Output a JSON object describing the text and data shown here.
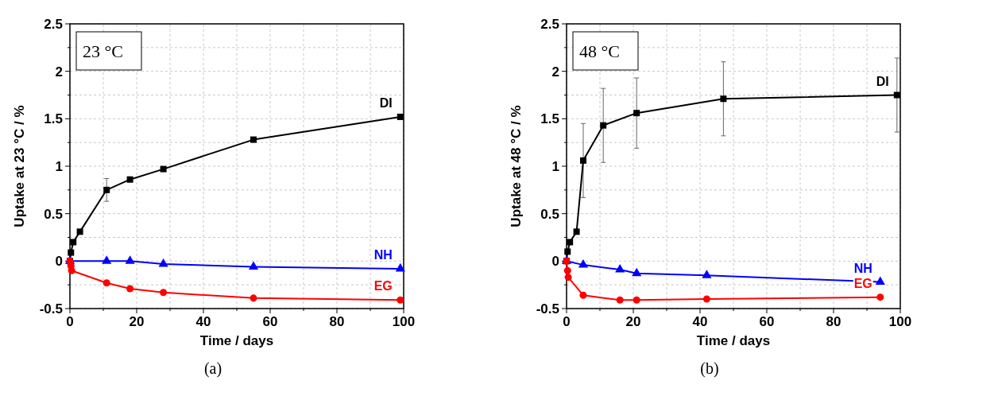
{
  "chart_data": [
    {
      "type": "line",
      "xlabel": "Time / days",
      "ylabel": "Uptake at 23 °C / %",
      "annotations": [
        "23 °C",
        "(a)"
      ],
      "xlim": [
        0,
        100
      ],
      "ylim": [
        -0.5,
        2.5
      ],
      "xticks": [
        0,
        {
          "value": 10,
          "label": null
        },
        20,
        {
          "value": 30,
          "label": null
        },
        40,
        {
          "value": 50,
          "label": null
        },
        60,
        {
          "value": 70,
          "label": null
        },
        80,
        {
          "value": 90,
          "label": null
        },
        100
      ],
      "yticks": [
        -0.5,
        {
          "value": -0.25,
          "label": null
        },
        0.0,
        {
          "value": 0.25,
          "label": null
        },
        0.5,
        {
          "value": 0.75,
          "label": null
        },
        1.0,
        {
          "value": 1.25,
          "label": null
        },
        1.5,
        {
          "value": 1.75,
          "label": null
        },
        2.0,
        {
          "value": 2.25,
          "label": null
        },
        2.5
      ],
      "grid": true,
      "series": [
        {
          "name": "DI",
          "color": "#000000",
          "marker": "square",
          "x": [
            0,
            0.3,
            1,
            3,
            11,
            18,
            28,
            55,
            99
          ],
          "values": [
            0,
            0.09,
            0.2,
            0.31,
            0.75,
            0.86,
            0.97,
            1.28,
            1.52
          ],
          "errors": [
            null,
            null,
            null,
            null,
            0.12,
            null,
            null,
            null,
            null
          ]
        },
        {
          "name": "NH",
          "color": "#0000ff",
          "marker": "triangle",
          "x": [
            0,
            11,
            18,
            28,
            55,
            99
          ],
          "values": [
            0,
            0,
            0,
            -0.03,
            -0.06,
            -0.08
          ]
        },
        {
          "name": "EG",
          "color": "#ff0000",
          "marker": "circle",
          "x": [
            0,
            0.3,
            0.5,
            11,
            18,
            28,
            55,
            99
          ],
          "values": [
            0,
            -0.05,
            -0.1,
            -0.23,
            -0.29,
            -0.33,
            -0.39,
            -0.41
          ]
        }
      ]
    },
    {
      "type": "line",
      "xlabel": "Time / days",
      "ylabel": "Uptake at 48 °C / %",
      "annotations": [
        "48 °C",
        "(b)"
      ],
      "xlim": [
        0,
        100
      ],
      "ylim": [
        -0.5,
        2.5
      ],
      "xticks": [
        0,
        {
          "value": 10,
          "label": null
        },
        20,
        {
          "value": 30,
          "label": null
        },
        40,
        {
          "value": 50,
          "label": null
        },
        60,
        {
          "value": 70,
          "label": null
        },
        80,
        {
          "value": 90,
          "label": null
        },
        100
      ],
      "yticks": [
        -0.5,
        {
          "value": -0.25,
          "label": null
        },
        0.0,
        {
          "value": 0.25,
          "label": null
        },
        0.5,
        {
          "value": 0.75,
          "label": null
        },
        1.0,
        {
          "value": 1.25,
          "label": null
        },
        1.5,
        {
          "value": 1.75,
          "label": null
        },
        2.0,
        {
          "value": 2.25,
          "label": null
        },
        2.5
      ],
      "grid": true,
      "series": [
        {
          "name": "DI",
          "color": "#000000",
          "marker": "square",
          "x": [
            0,
            0.3,
            1,
            3,
            5,
            11,
            21,
            47,
            99
          ],
          "values": [
            0,
            0.1,
            0.2,
            0.31,
            1.06,
            1.43,
            1.56,
            1.71,
            1.75
          ],
          "errors": [
            null,
            null,
            null,
            null,
            0.39,
            0.39,
            0.37,
            0.39,
            0.39
          ]
        },
        {
          "name": "NH",
          "color": "#0000ff",
          "marker": "triangle",
          "x": [
            0,
            5,
            16,
            21,
            42,
            94
          ],
          "values": [
            0,
            -0.04,
            -0.09,
            -0.13,
            -0.15,
            -0.22
          ]
        },
        {
          "name": "EG",
          "color": "#ff0000",
          "marker": "circle",
          "x": [
            0,
            0.3,
            0.5,
            5,
            16,
            21,
            42,
            94
          ],
          "values": [
            0,
            -0.1,
            -0.17,
            -0.36,
            -0.41,
            -0.41,
            -0.4,
            -0.38
          ]
        }
      ]
    }
  ]
}
